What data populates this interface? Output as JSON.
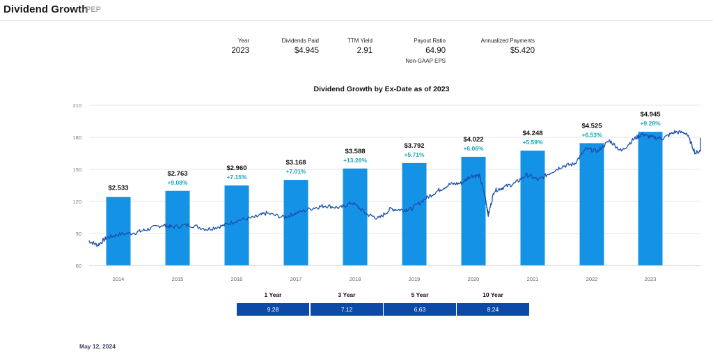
{
  "header": {
    "title": "Dividend Growth",
    "ticker": "PEP"
  },
  "stats": {
    "year_label": "Year",
    "year_value": "2023",
    "dividends_label": "Dividends Paid",
    "dividends_value": "$4.945",
    "ttm_label": "TTM Yield",
    "ttm_value": "2.91",
    "payout_label": "Payout Ratio",
    "payout_value": "64.90",
    "payout_note": "Non-GAAP EPS",
    "annualized_label": "Annualized Payments",
    "annualized_value": "$5.420"
  },
  "cagr": {
    "labels": [
      "1 Year",
      "3 Year",
      "5 Year",
      "10 Year"
    ],
    "values": [
      "9.28",
      "7.12",
      "6.63",
      "8.24"
    ]
  },
  "footer": {
    "date": "May 12, 2024"
  },
  "chart_data": {
    "type": "bar",
    "title": "Dividend Growth by Ex-Date as of 2023",
    "categories": [
      "2014",
      "2015",
      "2016",
      "2017",
      "2018",
      "2019",
      "2020",
      "2021",
      "2022",
      "2023"
    ],
    "dividends": [
      2.533,
      2.763,
      2.96,
      3.168,
      3.588,
      3.792,
      4.022,
      4.248,
      4.525,
      4.945
    ],
    "dividend_labels": [
      "$2.533",
      "$2.763",
      "$2.960",
      "$3.168",
      "$3.588",
      "$3.792",
      "$4.022",
      "$4.248",
      "$4.525",
      "$4.945"
    ],
    "growth_labels": [
      "",
      "+9.08%",
      "+7.15%",
      "+7.01%",
      "+13.26%",
      "+5.71%",
      "+6.06%",
      "+5.59%",
      "+6.53%",
      "+9.28%"
    ],
    "yticks": [
      "60",
      "90",
      "120",
      "150",
      "180",
      "210"
    ],
    "ylim": [
      60,
      210
    ],
    "bar_color": "#1493e6",
    "line_color": "#1c4fa8",
    "price_line": {
      "series": "price",
      "start_year": 2013.5,
      "end_year": 2024.4,
      "points": [
        [
          2013.5,
          83
        ],
        [
          2013.65,
          79
        ],
        [
          2013.8,
          86
        ],
        [
          2014.0,
          89
        ],
        [
          2014.3,
          91
        ],
        [
          2014.5,
          94
        ],
        [
          2014.75,
          98
        ],
        [
          2014.9,
          96
        ],
        [
          2015.2,
          98
        ],
        [
          2015.5,
          94
        ],
        [
          2015.75,
          97
        ],
        [
          2016.0,
          102
        ],
        [
          2016.3,
          105
        ],
        [
          2016.5,
          109
        ],
        [
          2016.8,
          105
        ],
        [
          2017.0,
          109
        ],
        [
          2017.3,
          114
        ],
        [
          2017.5,
          116
        ],
        [
          2017.75,
          114
        ],
        [
          2017.95,
          119
        ],
        [
          2018.2,
          108
        ],
        [
          2018.4,
          104
        ],
        [
          2018.6,
          113
        ],
        [
          2018.8,
          112
        ],
        [
          2018.95,
          113
        ],
        [
          2019.2,
          123
        ],
        [
          2019.4,
          130
        ],
        [
          2019.6,
          136
        ],
        [
          2019.8,
          137
        ],
        [
          2019.95,
          144
        ],
        [
          2020.1,
          144
        ],
        [
          2020.2,
          124
        ],
        [
          2020.25,
          107
        ],
        [
          2020.35,
          130
        ],
        [
          2020.5,
          133
        ],
        [
          2020.7,
          137
        ],
        [
          2020.9,
          145
        ],
        [
          2021.1,
          140
        ],
        [
          2021.3,
          147
        ],
        [
          2021.5,
          153
        ],
        [
          2021.7,
          155
        ],
        [
          2021.9,
          169
        ],
        [
          2022.1,
          167
        ],
        [
          2022.3,
          177
        ],
        [
          2022.5,
          167
        ],
        [
          2022.7,
          178
        ],
        [
          2022.85,
          183
        ],
        [
          2023.0,
          180
        ],
        [
          2023.2,
          179
        ],
        [
          2023.4,
          185
        ],
        [
          2023.6,
          184
        ],
        [
          2023.75,
          165
        ],
        [
          2023.9,
          170
        ],
        [
          2024.1,
          169
        ],
        [
          2024.25,
          172
        ],
        [
          2024.4,
          178
        ]
      ]
    }
  }
}
